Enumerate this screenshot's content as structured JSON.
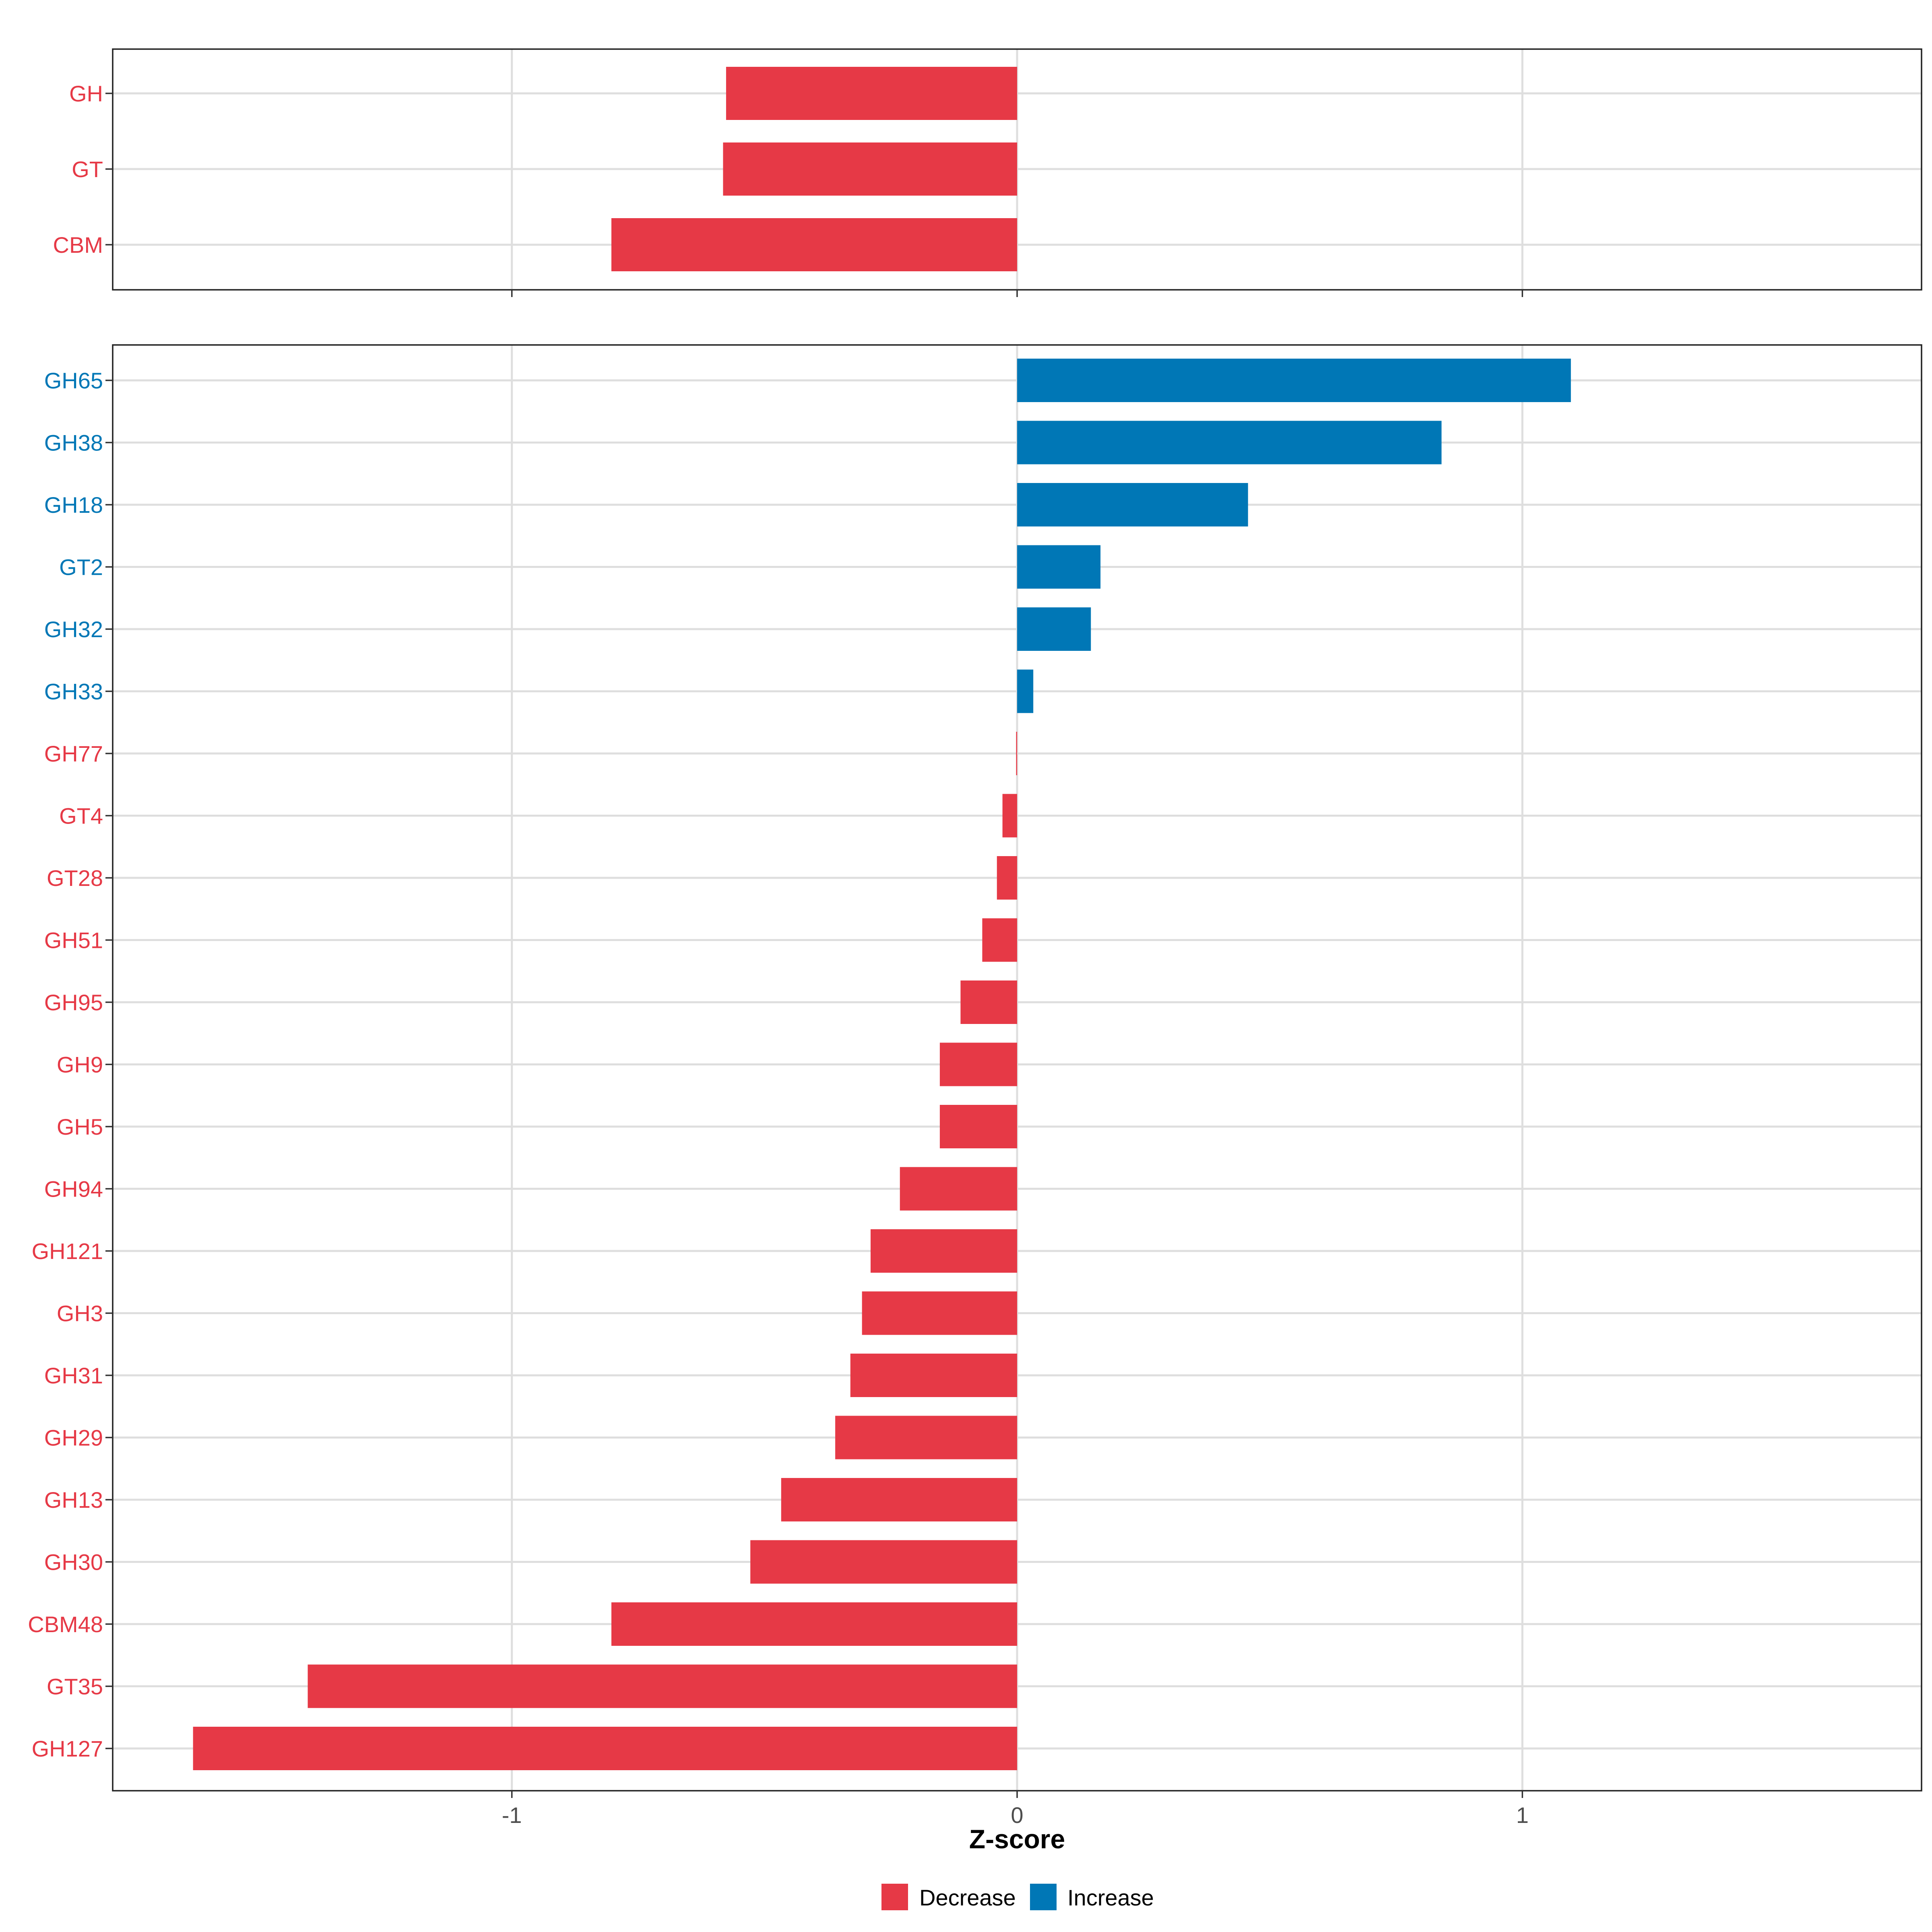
{
  "colors": {
    "decrease": "#E63946",
    "increase": "#0077B6"
  },
  "chart_data": [
    {
      "type": "bar",
      "orientation": "horizontal",
      "panel": "top",
      "categories": [
        "GH",
        "GT",
        "CBM"
      ],
      "values": [
        -0.576,
        -0.582,
        -0.803
      ],
      "xlim": [
        -1.79,
        1.79
      ],
      "xticks": [
        -1,
        0,
        1
      ],
      "show_x_tick_labels": false,
      "grid": true
    },
    {
      "type": "bar",
      "orientation": "horizontal",
      "panel": "bottom",
      "categories": [
        "GH65",
        "GH38",
        "GH18",
        "GT2",
        "GH32",
        "GH33",
        "GH77",
        "GT4",
        "GT28",
        "GH51",
        "GH95",
        "GH9",
        "GH5",
        "GH94",
        "GH121",
        "GH3",
        "GH31",
        "GH29",
        "GH13",
        "GH30",
        "CBM48",
        "GT35",
        "GH127"
      ],
      "values": [
        1.096,
        0.84,
        0.457,
        0.165,
        0.146,
        0.032,
        -0.002,
        -0.029,
        -0.04,
        -0.069,
        -0.112,
        -0.153,
        -0.153,
        -0.232,
        -0.29,
        -0.307,
        -0.33,
        -0.36,
        -0.467,
        -0.528,
        -0.803,
        -1.404,
        -1.631
      ],
      "xlim": [
        -1.79,
        1.79
      ],
      "xticks": [
        -1,
        0,
        1
      ],
      "xtick_labels": [
        "-1",
        "0",
        "1"
      ],
      "xlabel": "Z-score",
      "grid": true
    }
  ],
  "legend": {
    "position": "bottom",
    "items": [
      {
        "label": "Decrease",
        "color_key": "decrease"
      },
      {
        "label": "Increase",
        "color_key": "increase"
      }
    ]
  }
}
